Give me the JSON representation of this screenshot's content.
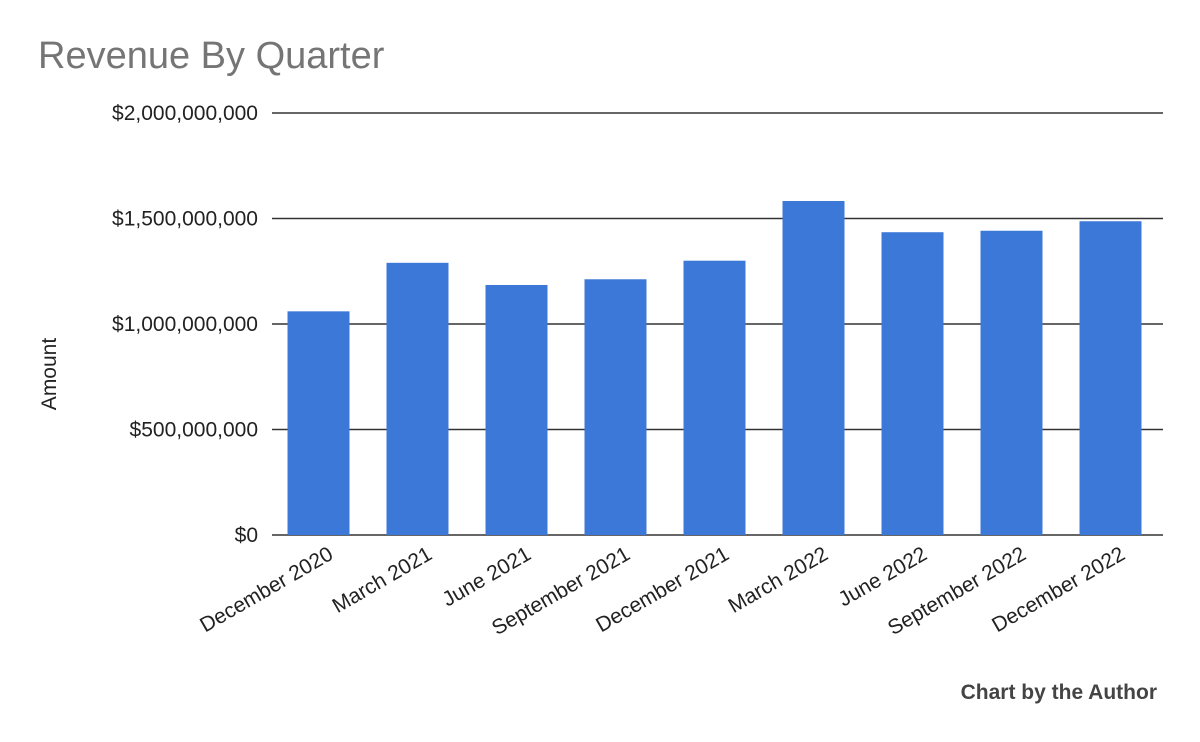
{
  "chart_data": {
    "type": "bar",
    "title": "Revenue By Quarter",
    "xlabel": "",
    "ylabel": "Amount",
    "categories": [
      "December 2020",
      "March 2021",
      "June 2021",
      "September 2021",
      "December 2021",
      "March 2022",
      "June 2022",
      "September 2022",
      "December 2022"
    ],
    "values": [
      1060000000,
      1290000000,
      1185000000,
      1212000000,
      1300000000,
      1583000000,
      1435000000,
      1442000000,
      1487000000
    ],
    "ylim": [
      0,
      2000000000
    ],
    "yticks": [
      0,
      500000000,
      1000000000,
      1500000000,
      2000000000
    ],
    "ytick_labels": [
      "$0",
      "$500,000,000",
      "$1,000,000,000",
      "$1,500,000,000",
      "$2,000,000,000"
    ],
    "bar_color": "#3c78d8",
    "grid": true,
    "legend": "none"
  },
  "credit": "Chart by the Author"
}
